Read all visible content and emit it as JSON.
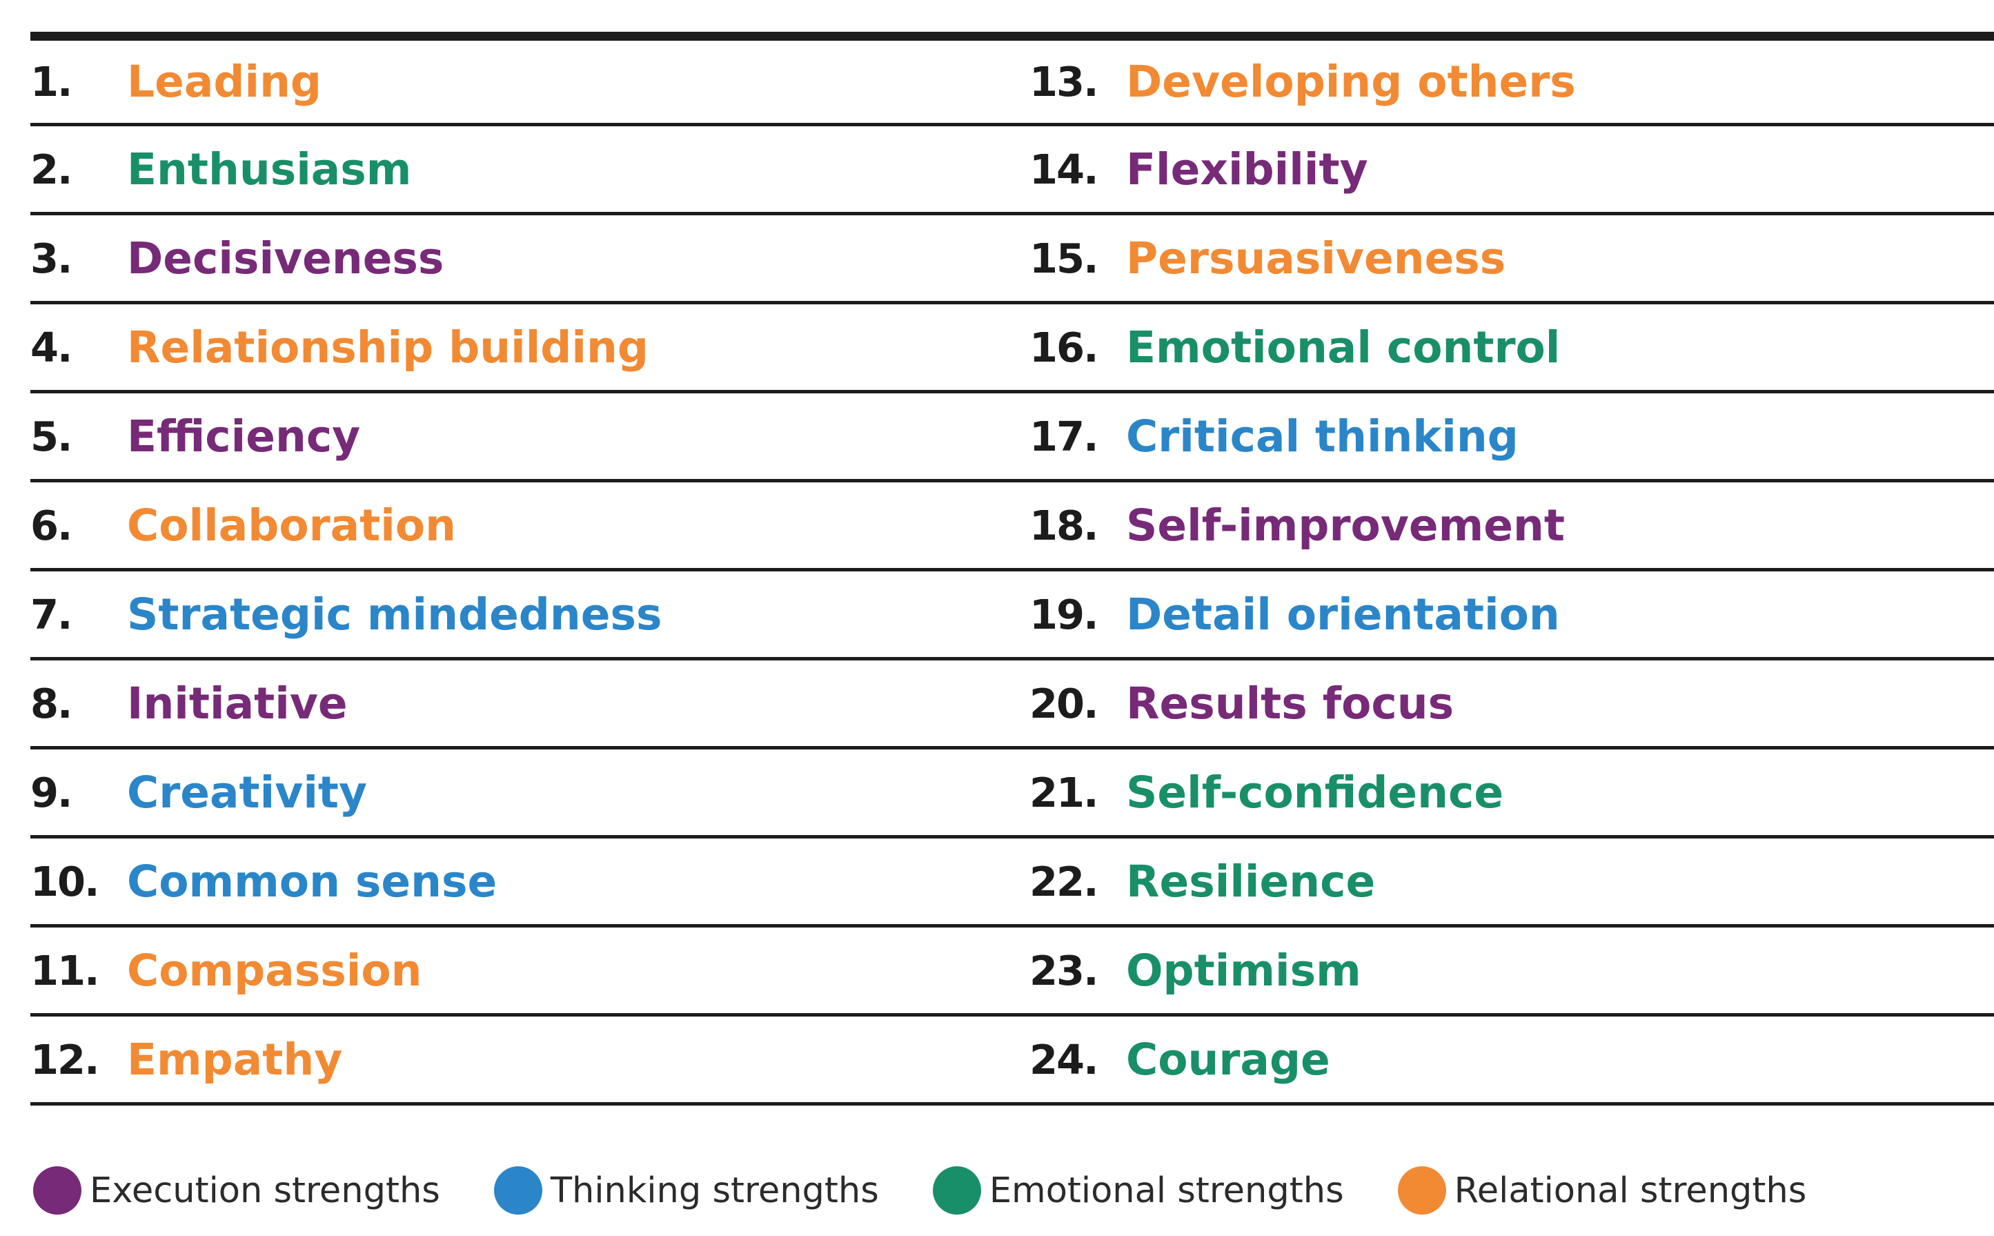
{
  "colors": {
    "execution": "#772a78",
    "thinking": "#2a86c8",
    "emotional": "#188f68",
    "relational": "#f28a33",
    "rule": "#1c1c1c"
  },
  "left_column": [
    {
      "number": "1.",
      "label": "Leading",
      "category": "relational"
    },
    {
      "number": "2.",
      "label": "Enthusiasm",
      "category": "emotional"
    },
    {
      "number": "3.",
      "label": "Decisiveness",
      "category": "execution"
    },
    {
      "number": "4.",
      "label": "Relationship building",
      "category": "relational"
    },
    {
      "number": "5.",
      "label": "Efficiency",
      "category": "execution"
    },
    {
      "number": "6.",
      "label": "Collaboration",
      "category": "relational"
    },
    {
      "number": "7.",
      "label": "Strategic mindedness",
      "category": "thinking"
    },
    {
      "number": "8.",
      "label": "Initiative",
      "category": "execution"
    },
    {
      "number": "9.",
      "label": "Creativity",
      "category": "thinking"
    },
    {
      "number": "10.",
      "label": "Common sense",
      "category": "thinking"
    },
    {
      "number": "11.",
      "label": "Compassion",
      "category": "relational"
    },
    {
      "number": "12.",
      "label": "Empathy",
      "category": "relational"
    }
  ],
  "right_column": [
    {
      "number": "13.",
      "label": "Developing others",
      "category": "relational"
    },
    {
      "number": "14.",
      "label": "Flexibility",
      "category": "execution"
    },
    {
      "number": "15.",
      "label": "Persuasiveness",
      "category": "relational"
    },
    {
      "number": "16.",
      "label": "Emotional control",
      "category": "emotional"
    },
    {
      "number": "17.",
      "label": "Critical thinking",
      "category": "thinking"
    },
    {
      "number": "18.",
      "label": "Self-improvement",
      "category": "execution"
    },
    {
      "number": "19.",
      "label": "Detail orientation",
      "category": "thinking"
    },
    {
      "number": "20.",
      "label": "Results focus",
      "category": "execution"
    },
    {
      "number": "21.",
      "label": "Self-confidence",
      "category": "emotional"
    },
    {
      "number": "22.",
      "label": "Resilience",
      "category": "emotional"
    },
    {
      "number": "23.",
      "label": "Optimism",
      "category": "emotional"
    },
    {
      "number": "24.",
      "label": "Courage",
      "category": "emotional"
    }
  ],
  "legend": [
    {
      "label": "Execution strengths",
      "category": "execution"
    },
    {
      "label": "Thinking strengths",
      "category": "thinking"
    },
    {
      "label": "Emotional strengths",
      "category": "emotional"
    },
    {
      "label": "Relational strengths",
      "category": "relational"
    }
  ]
}
